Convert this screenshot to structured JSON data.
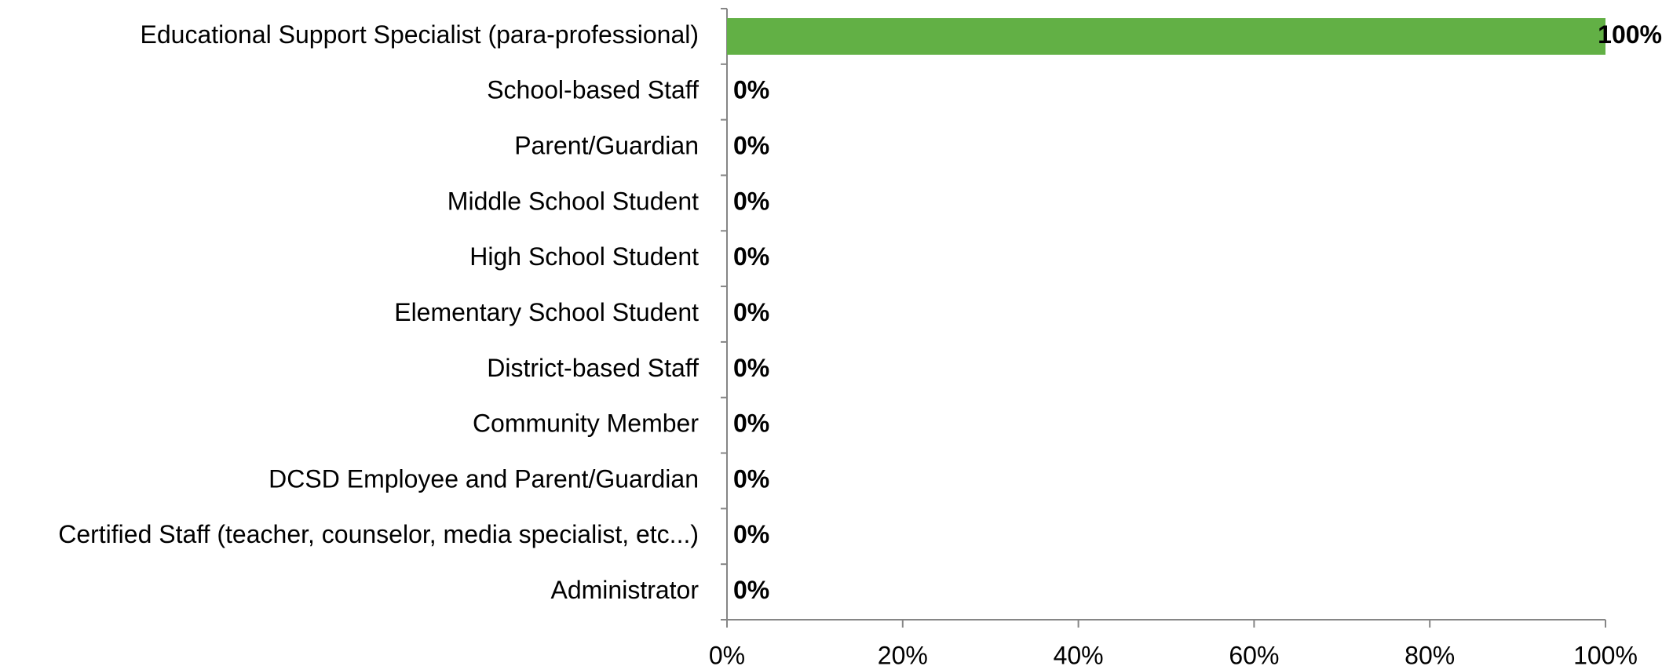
{
  "chart_data": {
    "type": "hbar",
    "categories": [
      "Educational Support Specialist (para-professional)",
      "School-based Staff",
      "Parent/Guardian",
      "Middle School Student",
      "High School Student",
      "Elementary School Student",
      "District-based Staff",
      "Community Member",
      "DCSD Employee and Parent/Guardian",
      "Certified Staff (teacher, counselor, media specialist, etc...)",
      "Administrator"
    ],
    "values": [
      100,
      0,
      0,
      0,
      0,
      0,
      0,
      0,
      0,
      0,
      0
    ],
    "value_labels": [
      "100%",
      "0%",
      "0%",
      "0%",
      "0%",
      "0%",
      "0%",
      "0%",
      "0%",
      "0%",
      "0%"
    ],
    "color": "#62b045",
    "xlim": [
      0,
      100
    ],
    "xticks": [
      {
        "value": 0,
        "label": "0%"
      },
      {
        "value": 20,
        "label": "20%"
      },
      {
        "value": 40,
        "label": "40%"
      },
      {
        "value": 60,
        "label": "60%"
      },
      {
        "value": 80,
        "label": "80%"
      },
      {
        "value": 100,
        "label": "100%"
      }
    ]
  }
}
